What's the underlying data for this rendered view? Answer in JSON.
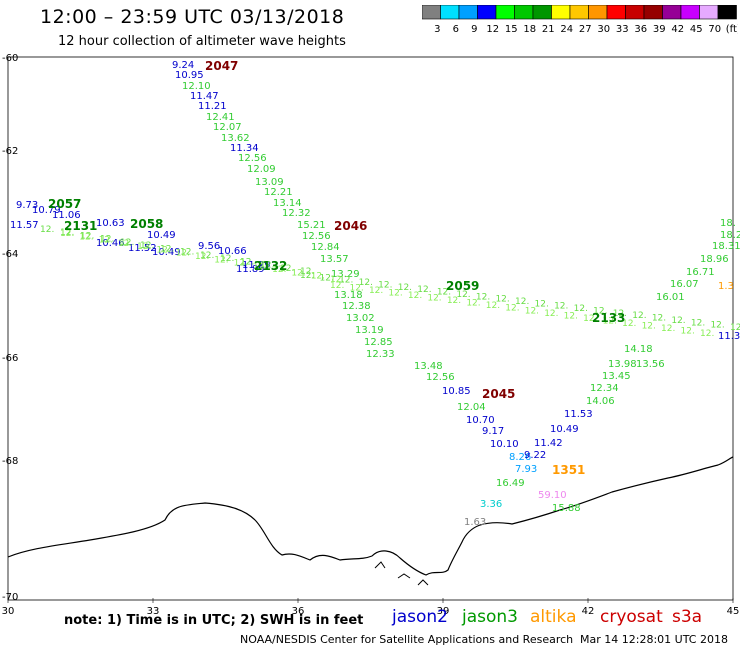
{
  "header": {
    "title": "12:00 – 23:59 UTC 03/13/2018",
    "subtitle": "12 hour collection of altimeter wave heights"
  },
  "colorbar": {
    "colors": [
      "#808080",
      "#00e0ff",
      "#00a0ff",
      "#0000ff",
      "#00ff00",
      "#00c800",
      "#009600",
      "#ffff00",
      "#ffc800",
      "#ff9600",
      "#ff0000",
      "#c80000",
      "#960000",
      "#960096",
      "#c800ff",
      "#e6aaff",
      "#000000"
    ],
    "labels": [
      "3",
      "6",
      "9",
      "12",
      "15",
      "18",
      "21",
      "24",
      "27",
      "30",
      "33",
      "36",
      "39",
      "42",
      "45",
      "70",
      "(ft)"
    ]
  },
  "axes": {
    "lon_labels": [
      "30",
      "33",
      "36",
      "39",
      "42",
      "45"
    ],
    "lat_labels": [
      "-60",
      "-62",
      "-64",
      "-66",
      "-68",
      "-70"
    ]
  },
  "tracks": [
    {
      "name": "2047",
      "color": "#800000",
      "points": [
        {
          "v": "9.24",
          "c": "#0000cc"
        },
        {
          "v": "10.95",
          "c": "#0000cc"
        },
        {
          "v": "12.10",
          "c": "#33cc33"
        },
        {
          "v": "11.47",
          "c": "#0000cc"
        },
        {
          "v": "11.21",
          "c": "#0000cc"
        },
        {
          "v": "12.41",
          "c": "#33cc33"
        },
        {
          "v": "12.07",
          "c": "#33cc33"
        },
        {
          "v": "13.62",
          "c": "#33cc33"
        },
        {
          "v": "11.34",
          "c": "#0000cc"
        },
        {
          "v": "12.56",
          "c": "#33cc33"
        },
        {
          "v": "12.09",
          "c": "#33cc33"
        },
        {
          "v": "13.09",
          "c": "#33cc33"
        },
        {
          "v": "12.21",
          "c": "#33cc33"
        },
        {
          "v": "13.14",
          "c": "#33cc33"
        },
        {
          "v": "12.32",
          "c": "#33cc33"
        },
        {
          "v": "15.21",
          "c": "#33cc33"
        },
        {
          "v": "12.56",
          "c": "#33cc33"
        },
        {
          "v": "12.84",
          "c": "#33cc33"
        },
        {
          "v": "13.57",
          "c": "#33cc33"
        },
        {
          "v": "13.29",
          "c": "#33cc33"
        },
        {
          "v": "13.18",
          "c": "#33cc33"
        },
        {
          "v": "12.38",
          "c": "#33cc33"
        },
        {
          "v": "13.02",
          "c": "#33cc33"
        },
        {
          "v": "13.19",
          "c": "#33cc33"
        },
        {
          "v": "12.85",
          "c": "#33cc33"
        },
        {
          "v": "12.33",
          "c": "#33cc33"
        },
        {
          "v": "13.48",
          "c": "#33cc33"
        },
        {
          "v": "12.56",
          "c": "#33cc33"
        },
        {
          "v": "10.85",
          "c": "#0000cc"
        },
        {
          "v": "12.04",
          "c": "#33cc33"
        },
        {
          "v": "10.70",
          "c": "#0000cc"
        },
        {
          "v": "9.17",
          "c": "#0000cc"
        },
        {
          "v": "10.10",
          "c": "#0000cc"
        },
        {
          "v": "8.26",
          "c": "#00a0ff"
        },
        {
          "v": "7.93",
          "c": "#00a0ff"
        },
        {
          "v": "16.49",
          "c": "#33cc33"
        },
        {
          "v": "3.36",
          "c": "#00cccc"
        },
        {
          "v": "1.63",
          "c": "#808080"
        }
      ]
    },
    {
      "name": "2046",
      "color": "#800000"
    },
    {
      "name": "2045",
      "color": "#800000"
    },
    {
      "name": "2057",
      "color": "#008000"
    },
    {
      "name": "2058",
      "color": "#008000"
    },
    {
      "name": "2131",
      "color": "#008000"
    },
    {
      "name": "2132",
      "color": "#008000"
    },
    {
      "name": "2059",
      "color": "#008000"
    },
    {
      "name": "2133",
      "color": "#008000"
    },
    {
      "name": "1351",
      "color": "#ff9900"
    }
  ],
  "labels_upper_left": [
    {
      "v": "9.73",
      "c": "#0000cc"
    },
    {
      "v": "10.79",
      "c": "#0000cc"
    },
    {
      "v": "11.06",
      "c": "#0000cc"
    },
    {
      "v": "11.57",
      "c": "#0000cc"
    },
    {
      "v": "10.63",
      "c": "#0000cc"
    },
    {
      "v": "10.46",
      "c": "#0000cc"
    },
    {
      "v": "11.52",
      "c": "#0000cc"
    },
    {
      "v": "10.49",
      "c": "#0000cc"
    },
    {
      "v": "10.49",
      "c": "#0000cc"
    },
    {
      "v": "9.56",
      "c": "#0000cc"
    },
    {
      "v": "10.66",
      "c": "#0000cc"
    },
    {
      "v": "11.29",
      "c": "#0000cc"
    },
    {
      "v": "11.89",
      "c": "#0000cc"
    }
  ],
  "labels_right": [
    {
      "v": "18.",
      "c": "#33cc33"
    },
    {
      "v": "18.20",
      "c": "#33cc33"
    },
    {
      "v": "18.31",
      "c": "#33cc33"
    },
    {
      "v": "18.96",
      "c": "#33cc33"
    },
    {
      "v": "16.71",
      "c": "#33cc33"
    },
    {
      "v": "16.07",
      "c": "#33cc33"
    },
    {
      "v": "16.01",
      "c": "#33cc33"
    },
    {
      "v": "14.18",
      "c": "#33cc33"
    },
    {
      "v": "13.98",
      "c": "#33cc33"
    },
    {
      "v": "13.45",
      "c": "#33cc33"
    },
    {
      "v": "12.34",
      "c": "#33cc33"
    },
    {
      "v": "14.06",
      "c": "#33cc33"
    },
    {
      "v": "11.53",
      "c": "#0000cc"
    },
    {
      "v": "10.49",
      "c": "#0000cc"
    },
    {
      "v": "11.42",
      "c": "#0000cc"
    },
    {
      "v": "9.22",
      "c": "#0000cc"
    },
    {
      "v": "59.10",
      "c": "#ee88ee"
    },
    {
      "v": "15.88",
      "c": "#33cc33"
    },
    {
      "v": "13.56",
      "c": "#33cc33"
    },
    {
      "v": "11.3",
      "c": "#0000cc"
    },
    {
      "v": "1.3",
      "c": "#ff9900"
    }
  ],
  "footer": {
    "note": "note:  1) Time is in UTC;  2) SWH is in feet",
    "legend": [
      {
        "name": "jason2",
        "color": "#0000cc"
      },
      {
        "name": "jason3",
        "color": "#009900"
      },
      {
        "name": "altika",
        "color": "#ff9900"
      },
      {
        "name": "cryosat",
        "color": "#cc0000"
      },
      {
        "name": "s3a",
        "color": "#cc0000"
      }
    ],
    "credit_left": "NOAA/NESDIS Center for Satellite Applications and Research",
    "credit_right": "Mar 14 12:28:01 UTC 2018"
  }
}
